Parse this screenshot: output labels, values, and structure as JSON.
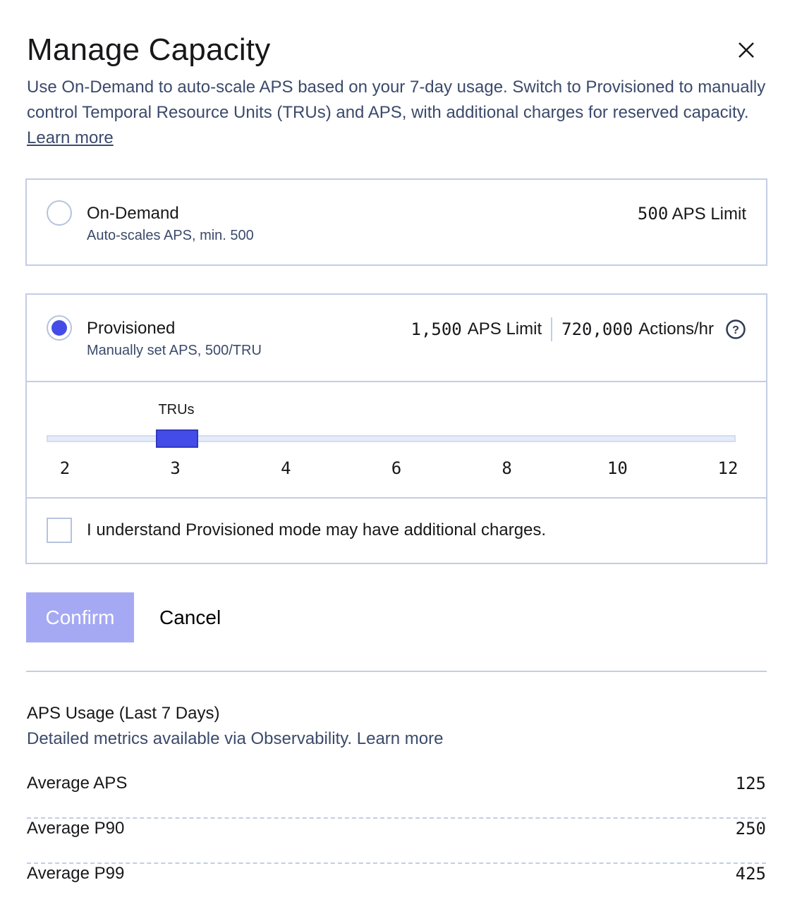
{
  "dialog": {
    "title": "Manage Capacity",
    "close_icon": "close-icon",
    "description": "Use On-Demand to auto-scale APS based on your 7-day usage. Switch to Provisioned to manually control Temporal Resource Units (TRUs) and APS, with additional charges for reserved capacity.",
    "learn_more": "Learn more"
  },
  "on_demand": {
    "title": "On-Demand",
    "subtitle": "Auto-scales APS, min. 500",
    "limit_value": "500",
    "limit_label": "APS Limit",
    "selected": false
  },
  "provisioned": {
    "title": "Provisioned",
    "subtitle": "Manually set APS, 500/TRU",
    "limit_value": "1,500",
    "limit_label": "APS Limit",
    "actions_value": "720,000",
    "actions_label": "Actions/hr",
    "help_icon": "question-circle-icon",
    "selected": true,
    "slider": {
      "label": "TRUs",
      "ticks": [
        "2",
        "3",
        "4",
        "6",
        "8",
        "10",
        "12"
      ],
      "value": "3"
    },
    "ack": {
      "label": "I understand Provisioned mode may have additional charges.",
      "checked": false
    }
  },
  "actions": {
    "confirm": "Confirm",
    "cancel": "Cancel"
  },
  "usage": {
    "title": "APS Usage (Last 7 Days)",
    "subtitle": "Detailed metrics available via Observability. Learn more",
    "rows": [
      {
        "label": "Average APS",
        "value": "125"
      },
      {
        "label": "Average P90",
        "value": "250"
      },
      {
        "label": "Average P99",
        "value": "425"
      }
    ]
  },
  "colors": {
    "accent": "#444ce7",
    "accent_disabled": "#a5a9f3",
    "border": "#c3cde4",
    "secondary_text": "#3b4a6b"
  }
}
